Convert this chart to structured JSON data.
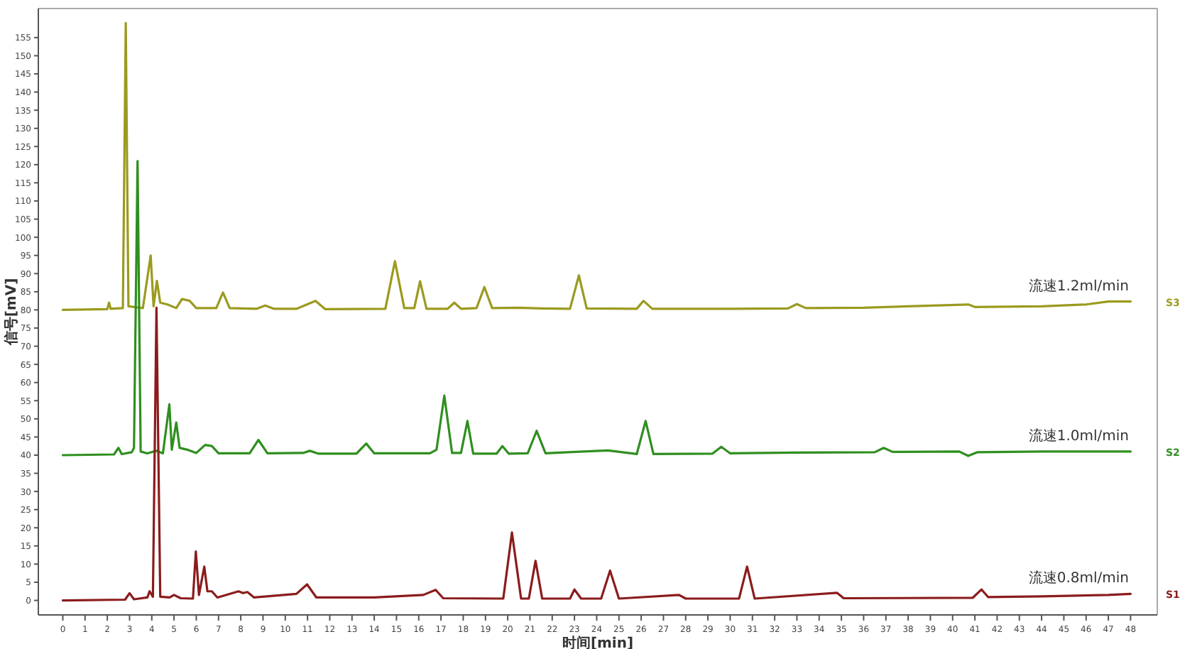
{
  "chart_data": {
    "type": "line",
    "xlabel": "时间[min]",
    "ylabel": "信号[mV]",
    "xlim": [
      -1.1,
      49.2
    ],
    "ylim": [
      -4,
      163
    ],
    "xticks": [
      0,
      1,
      2,
      3,
      4,
      5,
      6,
      7,
      8,
      9,
      10,
      11,
      12,
      13,
      14,
      15,
      16,
      17,
      18,
      19,
      20,
      21,
      22,
      23,
      24,
      25,
      26,
      27,
      28,
      29,
      30,
      31,
      32,
      33,
      34,
      35,
      36,
      37,
      38,
      39,
      40,
      41,
      42,
      43,
      44,
      45,
      46,
      47,
      48
    ],
    "yticks": [
      0,
      5,
      10,
      15,
      20,
      25,
      30,
      35,
      40,
      45,
      50,
      55,
      60,
      65,
      70,
      75,
      80,
      85,
      90,
      95,
      100,
      105,
      110,
      115,
      120,
      125,
      130,
      135,
      140,
      145,
      150,
      155
    ],
    "grid": false,
    "legend": false,
    "marker": "none",
    "line_style": "solid",
    "series": [
      {
        "name": "S3",
        "color": "#9b9a1f",
        "x": [
          0,
          2.0,
          2.08,
          2.15,
          2.7,
          2.83,
          2.95,
          3.6,
          3.95,
          4.08,
          4.23,
          4.38,
          4.7,
          5.1,
          5.36,
          5.7,
          6.0,
          6.9,
          7.2,
          7.5,
          8.7,
          9.1,
          9.5,
          10.5,
          11.36,
          11.8,
          14.5,
          14.93,
          15.35,
          15.8,
          16.06,
          16.35,
          17.3,
          17.6,
          17.9,
          18.6,
          18.95,
          19.3,
          20.5,
          21.5,
          22.8,
          23.2,
          23.55,
          25.8,
          26.1,
          26.5,
          30,
          32.6,
          33.0,
          33.4,
          36,
          40.7,
          41,
          44,
          46,
          47,
          48
        ],
        "values": [
          80,
          80.2,
          82,
          80.3,
          80.5,
          159,
          81,
          80.5,
          95,
          81,
          88,
          82,
          81.5,
          80.5,
          83,
          82.5,
          80.5,
          80.5,
          84.8,
          80.5,
          80.3,
          81.2,
          80.3,
          80.3,
          82.5,
          80.2,
          80.3,
          93.4,
          80.5,
          80.5,
          87.9,
          80.3,
          80.3,
          82,
          80.3,
          80.5,
          86.3,
          80.5,
          80.6,
          80.4,
          80.3,
          89.5,
          80.4,
          80.3,
          82.5,
          80.3,
          80.3,
          80.4,
          81.6,
          80.5,
          80.6,
          81.5,
          80.8,
          81,
          81.5,
          82.3,
          82.3
        ]
      },
      {
        "name": "S2",
        "color": "#2f8f1f",
        "x": [
          0,
          2.3,
          2.5,
          2.65,
          3.1,
          3.2,
          3.36,
          3.5,
          3.8,
          4.2,
          4.5,
          4.79,
          4.9,
          5.1,
          5.25,
          5.6,
          6.0,
          6.4,
          6.7,
          7.0,
          8.4,
          8.79,
          9.2,
          10.8,
          11.1,
          11.5,
          13.2,
          13.64,
          14.0,
          16.5,
          16.8,
          17.15,
          17.5,
          17.9,
          18.19,
          18.45,
          19.5,
          19.76,
          20.05,
          20.9,
          21.3,
          21.7,
          22.7,
          24.5,
          25.8,
          26.2,
          26.55,
          29.2,
          29.6,
          30,
          33,
          36.5,
          36.9,
          37.3,
          40.3,
          40.7,
          41.1,
          44,
          46,
          48
        ],
        "values": [
          40,
          40.2,
          42,
          40.3,
          40.8,
          42,
          121,
          41,
          40.5,
          41.2,
          40.5,
          54,
          41.5,
          49,
          42,
          41.5,
          40.6,
          42.8,
          42.5,
          40.5,
          40.5,
          44.2,
          40.5,
          40.6,
          41.2,
          40.4,
          40.4,
          43.2,
          40.5,
          40.5,
          41.5,
          56.4,
          40.6,
          40.6,
          49.4,
          40.4,
          40.4,
          42.5,
          40.4,
          40.5,
          46.7,
          40.5,
          40.8,
          41.3,
          40.3,
          49.4,
          40.3,
          40.4,
          42.3,
          40.5,
          40.7,
          40.8,
          42,
          40.9,
          41,
          39.8,
          40.8,
          41,
          41,
          41
        ]
      },
      {
        "name": "S1",
        "color": "#8b1c1c",
        "x": [
          0,
          2.8,
          3.0,
          3.2,
          3.8,
          3.9,
          4.05,
          4.21,
          4.38,
          4.8,
          5.0,
          5.3,
          5.85,
          5.98,
          6.12,
          6.36,
          6.5,
          6.7,
          6.95,
          7.9,
          8.1,
          8.3,
          8.6,
          10.5,
          10.98,
          11.4,
          14,
          16.2,
          16.76,
          17.1,
          19.8,
          20.19,
          20.6,
          20.95,
          21.25,
          21.55,
          22.8,
          23.0,
          23.3,
          24.2,
          24.6,
          25.0,
          27.7,
          28.0,
          30.4,
          30.76,
          31.1,
          34.8,
          35.1,
          40.9,
          41.3,
          41.6,
          44,
          47,
          48
        ],
        "values": [
          0,
          0.2,
          2,
          0.3,
          0.8,
          2.5,
          1,
          80.6,
          1,
          0.8,
          1.5,
          0.6,
          0.5,
          13.5,
          1.5,
          9.3,
          2.5,
          2.5,
          0.8,
          2.5,
          2,
          2.3,
          0.8,
          1.8,
          4.4,
          0.8,
          0.8,
          1.5,
          2.9,
          0.6,
          0.5,
          18.7,
          0.5,
          0.5,
          10.9,
          0.5,
          0.5,
          3.0,
          0.5,
          0.5,
          8.2,
          0.5,
          1.5,
          0.5,
          0.5,
          9.3,
          0.5,
          2.1,
          0.6,
          0.7,
          3.0,
          0.9,
          1.1,
          1.5,
          1.8
        ]
      }
    ],
    "annotations": [
      "流速1.2ml/min",
      "流速1.0ml/min",
      "流速0.8ml/min"
    ]
  }
}
